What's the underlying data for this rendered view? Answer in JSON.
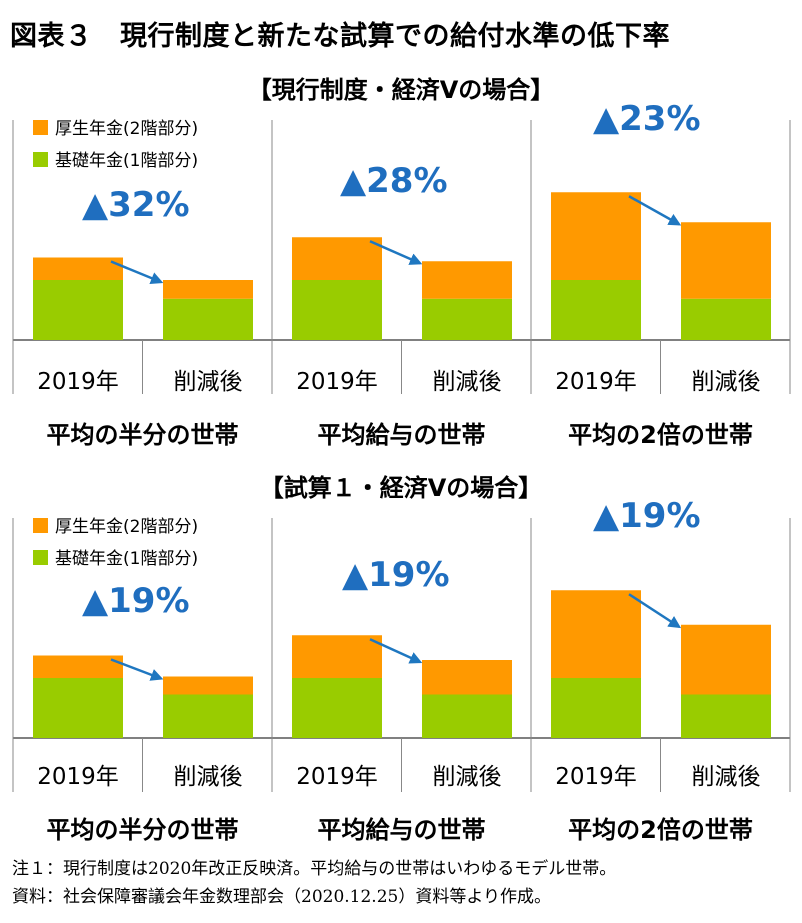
{
  "title": "図表３　現行制度と新たな試算での給付水準の低下率",
  "legend": {
    "kosei": "厚生年金(2階部分)",
    "kiso": "基礎年金(1階部分)"
  },
  "colors": {
    "kosei": "#FF9900",
    "kiso": "#99CC00",
    "arrow": "#1F77C0",
    "label": "#1F6EBF"
  },
  "notes": [
    "注１：現行制度は2020年改正反映済。平均給与の世帯はいわゆるモデル世帯。",
    "資料：社会保障審議会年金数理部会（2020.12.25）資料等より作成。"
  ],
  "chart_data": [
    {
      "type": "bar",
      "stacked": true,
      "title": "【現行制度・経済Vの場合】",
      "categories": [
        "2019年",
        "削減後"
      ],
      "groups": [
        {
          "name": "平均の半分の世帯",
          "reduction": "▲32%",
          "kiso": [
            80,
            55
          ],
          "kosei": [
            30,
            25
          ]
        },
        {
          "name": "平均給与の世帯",
          "reduction": "▲28%",
          "kiso": [
            80,
            55
          ],
          "kosei": [
            57,
            50
          ]
        },
        {
          "name": "平均の2倍の世帯",
          "reduction": "▲23%",
          "kiso": [
            80,
            55
          ],
          "kosei": [
            117,
            102
          ]
        }
      ]
    },
    {
      "type": "bar",
      "stacked": true,
      "title": "【試算１・経済Vの場合】",
      "categories": [
        "2019年",
        "削減後"
      ],
      "groups": [
        {
          "name": "平均の半分の世帯",
          "reduction": "▲19%",
          "kiso": [
            80,
            58
          ],
          "kosei": [
            30,
            24
          ]
        },
        {
          "name": "平均給与の世帯",
          "reduction": "▲19%",
          "kiso": [
            80,
            58
          ],
          "kosei": [
            57,
            46
          ]
        },
        {
          "name": "平均の2倍の世帯",
          "reduction": "▲19%",
          "kiso": [
            80,
            58
          ],
          "kosei": [
            117,
            93
          ]
        }
      ]
    }
  ]
}
